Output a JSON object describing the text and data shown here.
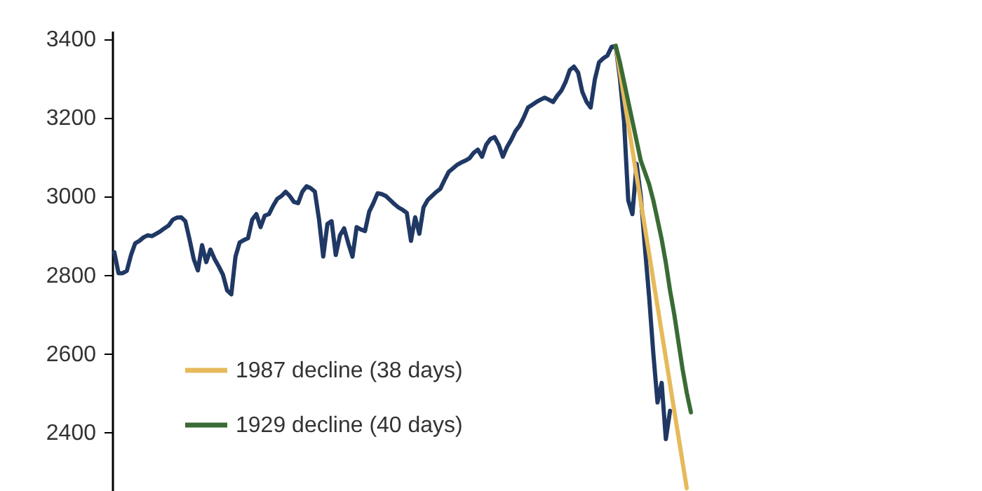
{
  "chart_data": {
    "type": "line",
    "categories": [
      null,
      null,
      null,
      null,
      null,
      null,
      null,
      null,
      null,
      null,
      null,
      null,
      null,
      null,
      null,
      null,
      null,
      null,
      null,
      null,
      null,
      null,
      null,
      null,
      null,
      null,
      null,
      null,
      null,
      null,
      null,
      null,
      null,
      null,
      null,
      null,
      null,
      null,
      null,
      null,
      null,
      null,
      null,
      null,
      null,
      null,
      null,
      null,
      null,
      null,
      null,
      null,
      null,
      null,
      null,
      null,
      null,
      null,
      null,
      null,
      null,
      null,
      null,
      null,
      null,
      null,
      null,
      null,
      null,
      null,
      null,
      null,
      null,
      null,
      null,
      null,
      null,
      null,
      null,
      null,
      null,
      null,
      null,
      null,
      null,
      null,
      null,
      null,
      null,
      null,
      null,
      null,
      null,
      null,
      null,
      null,
      null,
      null,
      null,
      null,
      null,
      null,
      null,
      null,
      null,
      null,
      null,
      null,
      null,
      null,
      null,
      null,
      null,
      null,
      null,
      null,
      null,
      null,
      null,
      null,
      null,
      null,
      null,
      null,
      null,
      null,
      null,
      null,
      null,
      null,
      null,
      null,
      null,
      null,
      null,
      null,
      null,
      null,
      null
    ],
    "series": [
      {
        "color": "#1f3864",
        "values": [
          2857,
          2804,
          2804,
          2810,
          2850,
          2880,
          2886,
          2895,
          2900,
          2898,
          2904,
          2910,
          2918,
          2925,
          2940,
          2945,
          2946,
          2936,
          2890,
          2840,
          2811,
          2875,
          2832,
          2864,
          2840,
          2821,
          2800,
          2760,
          2750,
          2846,
          2882,
          2888,
          2893,
          2940,
          2954,
          2921,
          2950,
          2954,
          2975,
          2993,
          3000,
          3011,
          3000,
          2985,
          2982,
          3011,
          3025,
          3020,
          3011,
          2940,
          2846,
          2929,
          2936,
          2850,
          2900,
          2918,
          2880,
          2846,
          2921,
          2915,
          2911,
          2960,
          2982,
          3007,
          3005,
          3000,
          2990,
          2980,
          2971,
          2965,
          2957,
          2886,
          2946,
          2904,
          2971,
          2990,
          3000,
          3010,
          3018,
          3040,
          3061,
          3070,
          3079,
          3085,
          3090,
          3096,
          3110,
          3118,
          3100,
          3130,
          3145,
          3150,
          3130,
          3100,
          3125,
          3143,
          3165,
          3179,
          3200,
          3225,
          3232,
          3239,
          3245,
          3250,
          3245,
          3239,
          3255,
          3268,
          3290,
          3320,
          3329,
          3314,
          3265,
          3240,
          3225,
          3296,
          3340,
          3350,
          3357,
          3379,
          3382,
          3300,
          3189,
          2989,
          2954,
          3082,
          3000,
          2868,
          2743,
          2600,
          2475,
          2525,
          2382,
          2454,
          null,
          null,
          null,
          null,
          null
        ]
      },
      {
        "name": "1987 decline (38 days)",
        "color": "#e6b95a",
        "values": [
          null,
          null,
          null,
          null,
          null,
          null,
          null,
          null,
          null,
          null,
          null,
          null,
          null,
          null,
          null,
          null,
          null,
          null,
          null,
          null,
          null,
          null,
          null,
          null,
          null,
          null,
          null,
          null,
          null,
          null,
          null,
          null,
          null,
          null,
          null,
          null,
          null,
          null,
          null,
          null,
          null,
          null,
          null,
          null,
          null,
          null,
          null,
          null,
          null,
          null,
          null,
          null,
          null,
          null,
          null,
          null,
          null,
          null,
          null,
          null,
          null,
          null,
          null,
          null,
          null,
          null,
          null,
          null,
          null,
          null,
          null,
          null,
          null,
          null,
          null,
          null,
          null,
          null,
          null,
          null,
          null,
          null,
          null,
          null,
          null,
          null,
          null,
          null,
          null,
          null,
          null,
          null,
          null,
          null,
          null,
          null,
          null,
          null,
          null,
          null,
          null,
          null,
          null,
          null,
          null,
          null,
          null,
          null,
          null,
          null,
          null,
          null,
          null,
          null,
          null,
          null,
          null,
          null,
          null,
          null,
          3382,
          3316,
          3250,
          3183,
          3117,
          3051,
          2985,
          2919,
          2853,
          2786,
          2720,
          2654,
          2588,
          2522,
          2455,
          2389,
          2323,
          2257,
          null
        ]
      },
      {
        "name": "1929 decline (40 days)",
        "color": "#3a6b35",
        "values": [
          null,
          null,
          null,
          null,
          null,
          null,
          null,
          null,
          null,
          null,
          null,
          null,
          null,
          null,
          null,
          null,
          null,
          null,
          null,
          null,
          null,
          null,
          null,
          null,
          null,
          null,
          null,
          null,
          null,
          null,
          null,
          null,
          null,
          null,
          null,
          null,
          null,
          null,
          null,
          null,
          null,
          null,
          null,
          null,
          null,
          null,
          null,
          null,
          null,
          null,
          null,
          null,
          null,
          null,
          null,
          null,
          null,
          null,
          null,
          null,
          null,
          null,
          null,
          null,
          null,
          null,
          null,
          null,
          null,
          null,
          null,
          null,
          null,
          null,
          null,
          null,
          null,
          null,
          null,
          null,
          null,
          null,
          null,
          null,
          null,
          null,
          null,
          null,
          null,
          null,
          null,
          null,
          null,
          null,
          null,
          null,
          null,
          null,
          null,
          null,
          null,
          null,
          null,
          null,
          null,
          null,
          null,
          null,
          null,
          null,
          null,
          null,
          null,
          null,
          null,
          null,
          null,
          null,
          null,
          null,
          3382,
          3340,
          3290,
          3240,
          3190,
          3140,
          3090,
          3060,
          3030,
          2989,
          2940,
          2890,
          2830,
          2760,
          2700,
          2630,
          2560,
          2500,
          2450
        ]
      }
    ],
    "ylim": [
      2250,
      3420
    ],
    "yticks": [
      2400,
      2600,
      2800,
      3000,
      3200,
      3400
    ],
    "tick_labels": "y",
    "legend": "bottom left"
  }
}
